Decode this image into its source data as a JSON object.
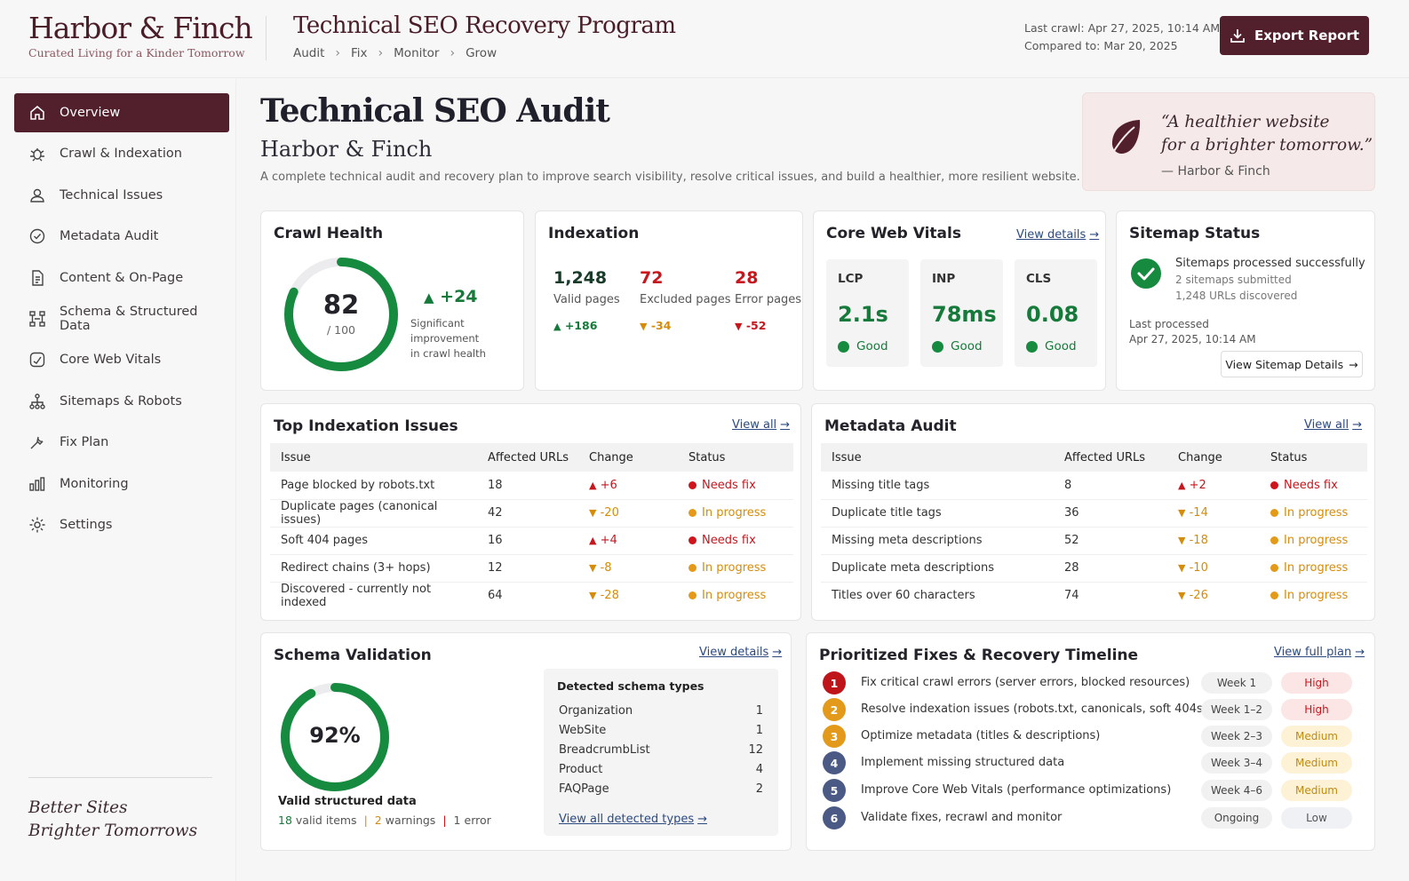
{
  "brand": {
    "name": "Harbor & Finch",
    "tagline": "Curated Living for a Kinder Tomorrow"
  },
  "header": {
    "program_title": "Technical SEO Recovery Program",
    "breadcrumbs": [
      "Audit",
      "Fix",
      "Monitor",
      "Grow"
    ],
    "last_crawl": "Last crawl: Apr 27, 2025, 10:14 AM",
    "compared_to": "Compared to: Mar 20, 2025",
    "export_label": "Export Report"
  },
  "sidebar": {
    "items": [
      {
        "label": "Overview",
        "icon": "home-icon",
        "active": true
      },
      {
        "label": "Crawl & Indexation",
        "icon": "bug-icon"
      },
      {
        "label": "Technical Issues",
        "icon": "user-icon"
      },
      {
        "label": "Metadata Audit",
        "icon": "check-circle-icon"
      },
      {
        "label": "Content & On-Page",
        "icon": "document-icon"
      },
      {
        "label": "Schema & Structured Data",
        "icon": "schema-icon"
      },
      {
        "label": "Core Web Vitals",
        "icon": "gauge-icon"
      },
      {
        "label": "Sitemaps & Robots",
        "icon": "sitemap-icon"
      },
      {
        "label": "Fix Plan",
        "icon": "wrench-icon"
      },
      {
        "label": "Monitoring",
        "icon": "bar-chart-icon"
      },
      {
        "label": "Settings",
        "icon": "gear-icon"
      }
    ],
    "quote_line1": "Better Sites",
    "quote_line2": "Brighter Tomorrows"
  },
  "page": {
    "title": "Technical SEO Audit",
    "subtitle": "Harbor & Finch",
    "description": "A complete technical audit and recovery plan to improve search visibility, resolve critical issues, and build a healthier, more resilient website."
  },
  "quote_card": {
    "line1": "“A healthier website",
    "line2": "for a brighter tomorrow.”",
    "attribution": "— Harbor & Finch"
  },
  "crawl_health": {
    "title": "Crawl Health",
    "score": 82,
    "score_max": "/ 100",
    "change": "+24",
    "note_line1": "Significant improvement",
    "note_line2": "in crawl health"
  },
  "indexation": {
    "title": "Indexation",
    "metrics": [
      {
        "value": "1,248",
        "label": "Valid pages",
        "change": "+186",
        "tone": "good"
      },
      {
        "value": "72",
        "label": "Excluded pages",
        "change": "-34",
        "tone": "warn"
      },
      {
        "value": "28",
        "label": "Error pages",
        "change": "-52",
        "tone": "bad"
      }
    ]
  },
  "core_web_vitals": {
    "title": "Core Web Vitals",
    "link": "View details",
    "vitals": [
      {
        "name": "LCP",
        "value": "2.1s",
        "status": "Good"
      },
      {
        "name": "INP",
        "value": "78ms",
        "status": "Good"
      },
      {
        "name": "CLS",
        "value": "0.08",
        "status": "Good"
      }
    ]
  },
  "sitemap": {
    "title": "Sitemap Status",
    "status": "Sitemaps processed successfully",
    "submitted": "2 sitemaps submitted",
    "discovered": "1,248 URLs discovered",
    "last_label": "Last processed",
    "last_value": "Apr 27, 2025, 10:14 AM",
    "button": "View Sitemap Details"
  },
  "top_issues": {
    "title": "Top Indexation Issues",
    "link": "View all",
    "columns": [
      "Issue",
      "Affected URLs",
      "Change",
      "Status"
    ],
    "rows": [
      {
        "issue": "Page blocked by robots.txt",
        "urls": "18",
        "change": "+6",
        "dir": "up",
        "status": "Needs fix",
        "tone": "r"
      },
      {
        "issue": "Duplicate pages (canonical issues)",
        "urls": "42",
        "change": "-20",
        "dir": "down",
        "status": "In progress",
        "tone": "o"
      },
      {
        "issue": "Soft 404 pages",
        "urls": "16",
        "change": "+4",
        "dir": "up",
        "status": "Needs fix",
        "tone": "r"
      },
      {
        "issue": "Redirect chains (3+ hops)",
        "urls": "12",
        "change": "-8",
        "dir": "down",
        "status": "In progress",
        "tone": "o"
      },
      {
        "issue": "Discovered - currently not indexed",
        "urls": "64",
        "change": "-28",
        "dir": "down",
        "status": "In progress",
        "tone": "o"
      }
    ]
  },
  "metadata_audit": {
    "title": "Metadata Audit",
    "link": "View all",
    "columns": [
      "Issue",
      "Affected URLs",
      "Change",
      "Status"
    ],
    "rows": [
      {
        "issue": "Missing title tags",
        "urls": "8",
        "change": "+2",
        "dir": "up",
        "status": "Needs fix",
        "tone": "r"
      },
      {
        "issue": "Duplicate title tags",
        "urls": "36",
        "change": "-14",
        "dir": "down",
        "status": "In progress",
        "tone": "o"
      },
      {
        "issue": "Missing meta descriptions",
        "urls": "52",
        "change": "-18",
        "dir": "down",
        "status": "In progress",
        "tone": "o"
      },
      {
        "issue": "Duplicate meta descriptions",
        "urls": "28",
        "change": "-10",
        "dir": "down",
        "status": "In progress",
        "tone": "o"
      },
      {
        "issue": "Titles over 60 characters",
        "urls": "74",
        "change": "-26",
        "dir": "down",
        "status": "In progress",
        "tone": "o"
      }
    ]
  },
  "schema": {
    "title": "Schema Validation",
    "link": "View details",
    "percent": "92%",
    "percent_value": 0.92,
    "caption": "Valid structured data",
    "valid_count": "18",
    "valid_label": "valid items",
    "warn_count": "2",
    "warn_label": "warnings",
    "error_count": "1",
    "error_label": "error",
    "box_title": "Detected schema types",
    "types": [
      {
        "name": "Organization",
        "count": "1"
      },
      {
        "name": "WebSite",
        "count": "1"
      },
      {
        "name": "BreadcrumbList",
        "count": "12"
      },
      {
        "name": "Product",
        "count": "4"
      },
      {
        "name": "FAQPage",
        "count": "2"
      }
    ],
    "box_link": "View all detected types"
  },
  "fixes": {
    "title": "Prioritized Fixes & Recovery Timeline",
    "link": "View full plan",
    "items": [
      {
        "num": "1",
        "text": "Fix critical crawl errors (server errors, blocked resources)",
        "week": "Week 1",
        "priority": "High",
        "color": "#c0141b"
      },
      {
        "num": "2",
        "text": "Resolve indexation issues (robots.txt, canonicals, soft 404s)",
        "week": "Week 1–2",
        "priority": "High",
        "color": "#e39a1a"
      },
      {
        "num": "3",
        "text": "Optimize metadata (titles & descriptions)",
        "week": "Week 2–3",
        "priority": "Medium",
        "color": "#e39a1a"
      },
      {
        "num": "4",
        "text": "Implement missing structured data",
        "week": "Week 3–4",
        "priority": "Medium",
        "color": "#4a5a85"
      },
      {
        "num": "5",
        "text": "Improve Core Web Vitals (performance optimizations)",
        "week": "Week 4–6",
        "priority": "Medium",
        "color": "#4a5a85"
      },
      {
        "num": "6",
        "text": "Validate fixes, recrawl and monitor",
        "week": "Ongoing",
        "priority": "Low",
        "color": "#4a5a85"
      }
    ]
  }
}
